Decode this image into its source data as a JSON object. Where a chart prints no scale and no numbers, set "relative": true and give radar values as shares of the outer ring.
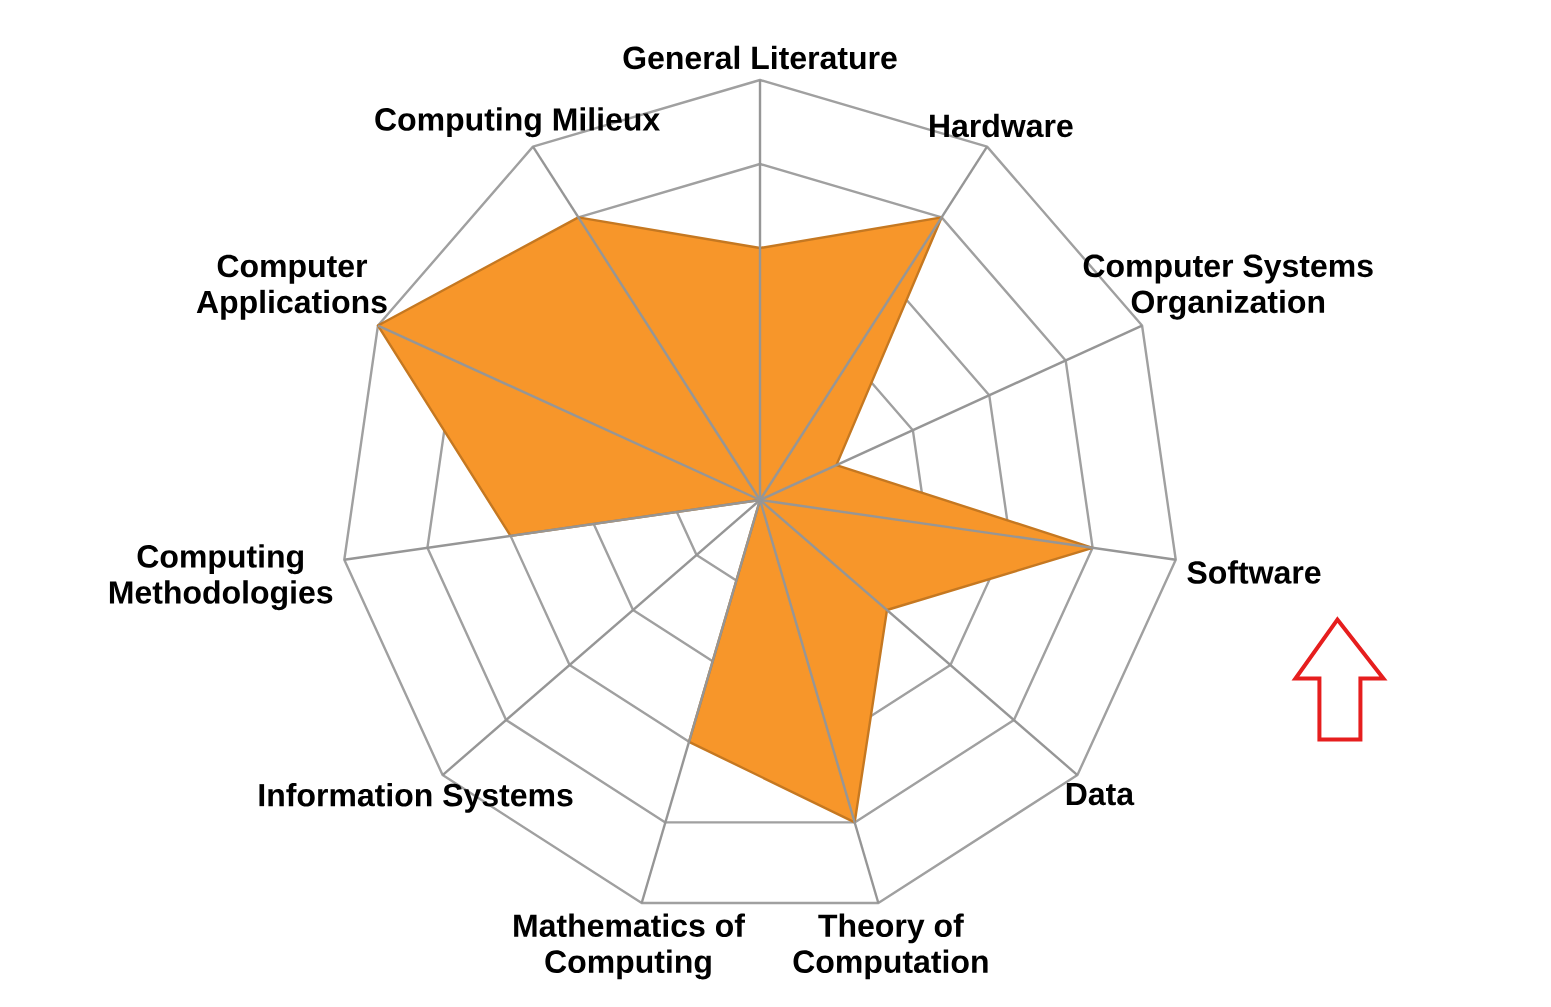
{
  "chart_data": {
    "type": "radar",
    "relative": true,
    "grid": true,
    "color": "#f7962a",
    "categories": [
      "General Literature",
      "Hardware",
      "Computer Systems Organization",
      "Software",
      "Data",
      "Theory of Computation",
      "Mathematics of Computing",
      "Information Systems",
      "Computing Methodologies",
      "Computer Applications",
      "Computing Milieux"
    ],
    "values": [
      0.6,
      0.8,
      0.2,
      0.8,
      0.4,
      0.8,
      0.6,
      0,
      0.6,
      1.0,
      0.8
    ]
  }
}
